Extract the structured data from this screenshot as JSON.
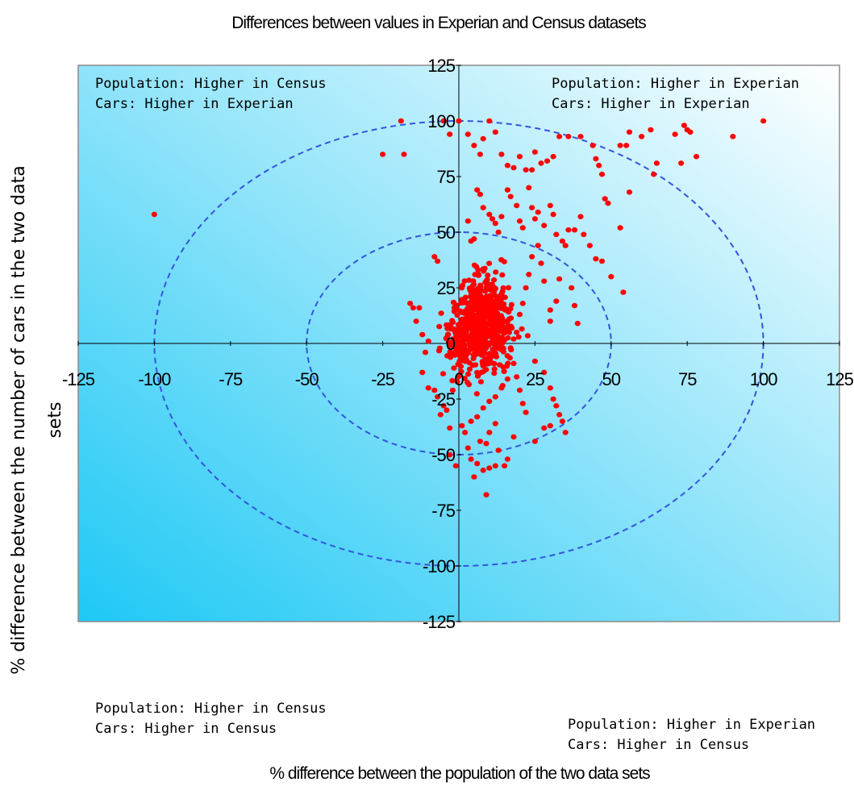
{
  "chart_data": {
    "type": "scatter",
    "title": "Differences between values in Experian and Census datasets",
    "xlabel": "% difference between the population of the two data sets",
    "ylabel_lines": [
      "% difference between the number of cars in the two data",
      "sets"
    ],
    "xlim": [
      -125,
      125
    ],
    "ylim": [
      -125,
      125
    ],
    "xticks": [
      -125,
      -100,
      -75,
      -50,
      -25,
      0,
      25,
      50,
      75,
      100,
      125
    ],
    "yticks": [
      125,
      100,
      75,
      50,
      25,
      0,
      -25,
      -50,
      -75,
      -100,
      -125
    ],
    "grid": false,
    "reference_circles_radius": [
      50,
      100
    ],
    "quadrant_annotations": {
      "top_left": [
        "Population: Higher in Census",
        "Cars: Higher in Experian"
      ],
      "top_right": [
        "Population: Higher in Experian",
        "Cars: Higher in Experian"
      ],
      "bottom_left": [
        "Population: Higher in Census",
        "Cars: Higher in Census"
      ],
      "bottom_right": [
        "Population: Higher in Experian",
        "Cars: Higher in Census"
      ]
    },
    "colors": {
      "points": "#ff0000",
      "circles": "#3355dd",
      "background_light": "#ffffff",
      "background_dark": "#1ec8f5"
    },
    "series": [
      {
        "points": [
          [
            -100,
            58
          ],
          [
            -25,
            85
          ],
          [
            -19,
            100
          ],
          [
            -18,
            85
          ],
          [
            -5,
            100
          ],
          [
            -3,
            94
          ],
          [
            0,
            100
          ],
          [
            -8,
            39
          ],
          [
            -7,
            37
          ],
          [
            -13,
            16
          ],
          [
            -10,
            1
          ],
          [
            -11,
            -4
          ],
          [
            -12,
            -13
          ],
          [
            -10,
            -20
          ],
          [
            -8,
            -21
          ],
          [
            -7,
            -24
          ],
          [
            -5,
            -28
          ],
          [
            -6,
            -32
          ],
          [
            -3,
            -50
          ],
          [
            -1,
            -55
          ],
          [
            -3,
            -38
          ],
          [
            -4,
            -30
          ],
          [
            -2,
            -21
          ],
          [
            -16,
            18
          ],
          [
            -14,
            10
          ],
          [
            -12,
            4
          ],
          [
            -15,
            16
          ],
          [
            3,
            94
          ],
          [
            5,
            89
          ],
          [
            7,
            85
          ],
          [
            8,
            92
          ],
          [
            10,
            100
          ],
          [
            12,
            95
          ],
          [
            14,
            85
          ],
          [
            16,
            80
          ],
          [
            18,
            79
          ],
          [
            20,
            84
          ],
          [
            22,
            78
          ],
          [
            24,
            78
          ],
          [
            25,
            86
          ],
          [
            27,
            81
          ],
          [
            29,
            82
          ],
          [
            31,
            84
          ],
          [
            33,
            93
          ],
          [
            36,
            93
          ],
          [
            40,
            93
          ],
          [
            44,
            89
          ],
          [
            45,
            83
          ],
          [
            46,
            80
          ],
          [
            47,
            76
          ],
          [
            53,
            89
          ],
          [
            55,
            89
          ],
          [
            56,
            95
          ],
          [
            60,
            93
          ],
          [
            63,
            96
          ],
          [
            64,
            76
          ],
          [
            65,
            81
          ],
          [
            71,
            94
          ],
          [
            73,
            81
          ],
          [
            74,
            98
          ],
          [
            75,
            96
          ],
          [
            76,
            95
          ],
          [
            78,
            84
          ],
          [
            90,
            93
          ],
          [
            100,
            100
          ],
          [
            56,
            68
          ],
          [
            53,
            52
          ],
          [
            48,
            65
          ],
          [
            49,
            63
          ],
          [
            40,
            57
          ],
          [
            38,
            51
          ],
          [
            34,
            46
          ],
          [
            35,
            44
          ],
          [
            36,
            51
          ],
          [
            41,
            49
          ],
          [
            43,
            44
          ],
          [
            45,
            38
          ],
          [
            47,
            37
          ],
          [
            50,
            30
          ],
          [
            54,
            23
          ],
          [
            23,
            70
          ],
          [
            24,
            61
          ],
          [
            25,
            56
          ],
          [
            26,
            59
          ],
          [
            28,
            53
          ],
          [
            30,
            62
          ],
          [
            31,
            58
          ],
          [
            32,
            49
          ],
          [
            16,
            69
          ],
          [
            17,
            66
          ],
          [
            19,
            62
          ],
          [
            20,
            55
          ],
          [
            21,
            52
          ],
          [
            6,
            69
          ],
          [
            7,
            67
          ],
          [
            8,
            61
          ],
          [
            10,
            58
          ],
          [
            11,
            56
          ],
          [
            12,
            54
          ],
          [
            13,
            50
          ],
          [
            14,
            57
          ],
          [
            5,
            47
          ],
          [
            4,
            46
          ],
          [
            3,
            55
          ],
          [
            38,
            17
          ],
          [
            39,
            9
          ],
          [
            37,
            25
          ],
          [
            33,
            29
          ],
          [
            32,
            19
          ],
          [
            30,
            15
          ],
          [
            30,
            10
          ],
          [
            28,
            28
          ],
          [
            27,
            36
          ],
          [
            26,
            44
          ],
          [
            24,
            39
          ],
          [
            23,
            31
          ],
          [
            22,
            25
          ],
          [
            21,
            18
          ],
          [
            20,
            13
          ],
          [
            19,
            5
          ],
          [
            18,
            2
          ],
          [
            17,
            -2
          ],
          [
            18,
            -9
          ],
          [
            19,
            -15
          ],
          [
            20,
            -21
          ],
          [
            21,
            -27
          ],
          [
            22,
            -31
          ],
          [
            25,
            -8
          ],
          [
            28,
            -13
          ],
          [
            30,
            -20
          ],
          [
            31,
            -25
          ],
          [
            32,
            -28
          ],
          [
            33,
            -32
          ],
          [
            34,
            -35
          ],
          [
            35,
            -40
          ],
          [
            30,
            -37
          ],
          [
            28,
            -38
          ],
          [
            25,
            -44
          ],
          [
            18,
            -42
          ],
          [
            16,
            -52
          ],
          [
            13,
            -48
          ],
          [
            15,
            -55
          ],
          [
            12,
            -55
          ],
          [
            10,
            -56
          ],
          [
            8,
            -57
          ],
          [
            6,
            -54
          ],
          [
            5,
            -60
          ],
          [
            9,
            -68
          ],
          [
            4,
            -52
          ],
          [
            3,
            -47
          ],
          [
            2,
            -40
          ],
          [
            1,
            -37
          ],
          [
            4,
            -35
          ],
          [
            6,
            -33
          ],
          [
            8,
            -29
          ],
          [
            10,
            -26
          ],
          [
            12,
            -24
          ],
          [
            14,
            -20
          ],
          [
            16,
            -16
          ],
          [
            10,
            -40
          ],
          [
            12,
            -36
          ],
          [
            7,
            -44
          ],
          [
            9,
            -45
          ]
        ],
        "cluster": {
          "center": [
            7,
            8
          ],
          "spread": [
            7,
            14
          ],
          "count": 700
        }
      }
    ]
  }
}
